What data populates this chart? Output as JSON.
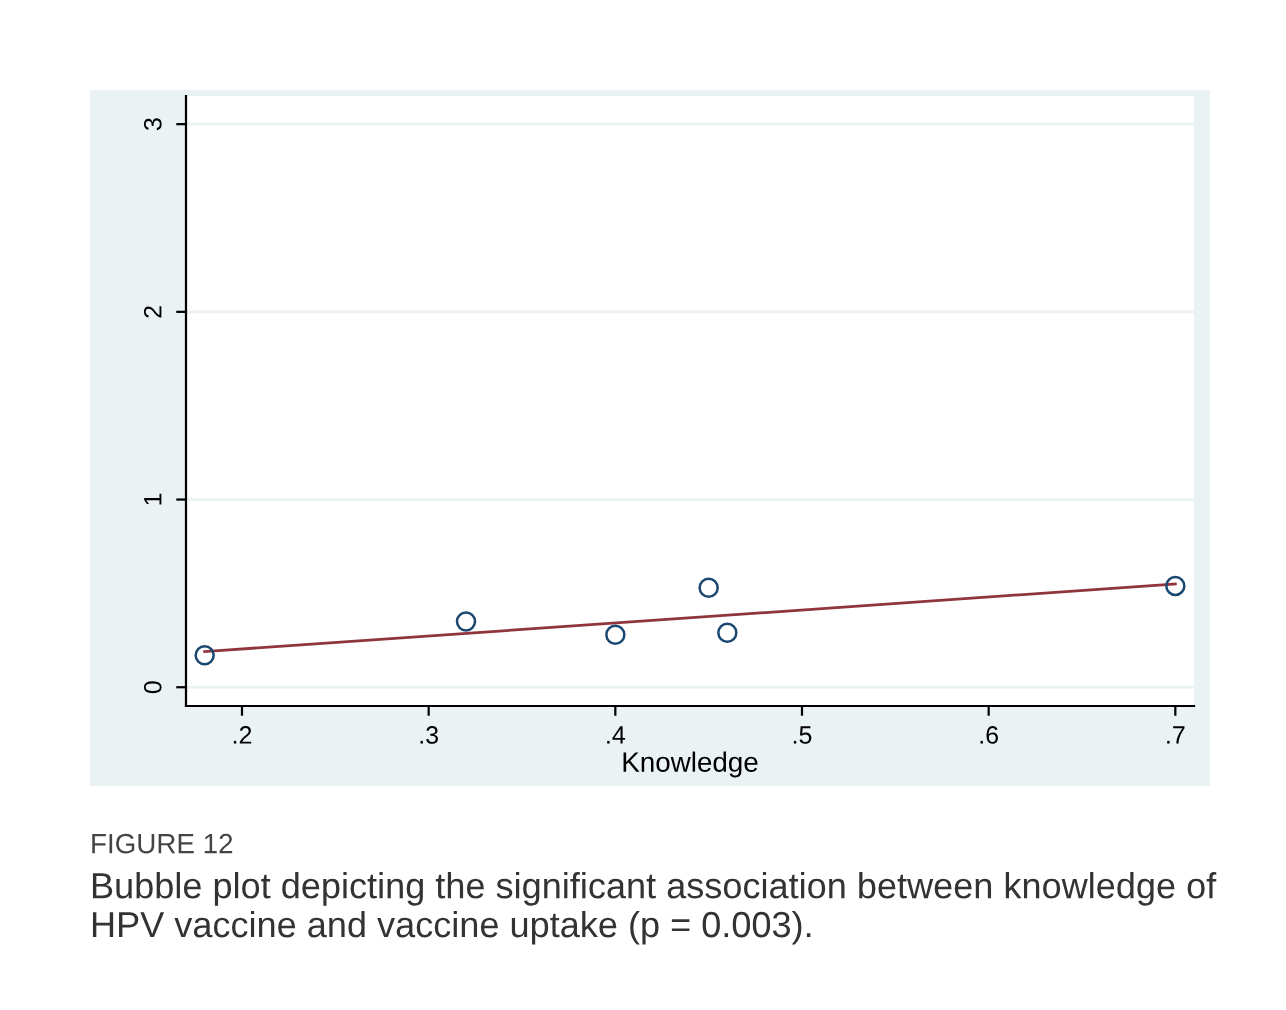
{
  "chart_data": {
    "type": "scatter",
    "xlabel": "Knowledge",
    "xlim": [
      0.17,
      0.71
    ],
    "ylim": [
      -0.1,
      3.15
    ],
    "xticks": [
      {
        "value": 0.2,
        "label": ".2"
      },
      {
        "value": 0.3,
        "label": ".3"
      },
      {
        "value": 0.4,
        "label": ".4"
      },
      {
        "value": 0.5,
        "label": ".5"
      },
      {
        "value": 0.6,
        "label": ".6"
      },
      {
        "value": 0.7,
        "label": ".7"
      }
    ],
    "yticks": [
      0,
      1,
      2,
      3
    ],
    "grid": "y",
    "legend": false,
    "series": [
      {
        "color": "#1a476f",
        "marker": "circle",
        "x": [
          0.18,
          0.32,
          0.4,
          0.45,
          0.46,
          0.7
        ],
        "values": [
          0.17,
          0.35,
          0.28,
          0.53,
          0.29,
          0.54
        ]
      },
      {
        "type": "line",
        "color": "#90353b",
        "marker": "none",
        "line_style": "solid",
        "x": [
          0.18,
          0.7
        ],
        "values": [
          0.19,
          0.55
        ]
      }
    ],
    "annotations": [
      "FIGURE 12",
      "Bubble plot depicting the significant association between knowledge of HPV vaccine and vaccine uptake (p = 0.003)."
    ]
  }
}
